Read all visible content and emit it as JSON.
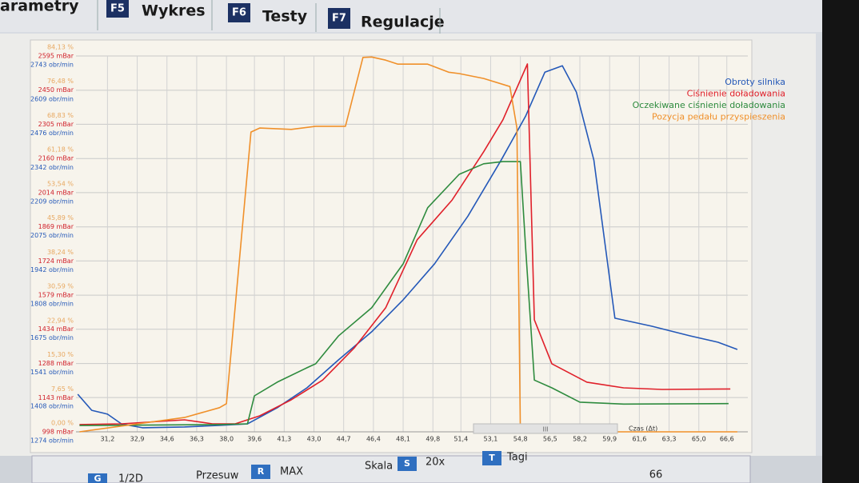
{
  "ui": {
    "partial_tab": "arametry",
    "tabs": [
      {
        "key": "F5",
        "label": "Wykres"
      },
      {
        "key": "F6",
        "label": "Testy"
      },
      {
        "key": "F7",
        "label": "Regulacje"
      }
    ],
    "toolbar": [
      {
        "key": "G",
        "label": "1/2D"
      },
      {
        "text": "Przesuw",
        "key": "R",
        "label": "MAX"
      },
      {
        "text": "Skala",
        "key": "S",
        "label": "20x"
      },
      {
        "key": "T",
        "label": "Tagi"
      }
    ],
    "scroll": "III",
    "page": "66"
  },
  "chart_data": {
    "type": "line",
    "x_label": "Czas (Δt)",
    "xlim": [
      29.4,
      67.8
    ],
    "xticks": [
      {
        "value": 31.2,
        "label": "31,2"
      },
      {
        "value": 32.9,
        "label": "32,9"
      },
      {
        "value": 34.6,
        "label": "34,6"
      },
      {
        "value": 36.3,
        "label": "36,3"
      },
      {
        "value": 38.0,
        "label": "38,0"
      },
      {
        "value": 39.6,
        "label": "39,6"
      },
      {
        "value": 41.3,
        "label": "41,3"
      },
      {
        "value": 43.0,
        "label": "43,0"
      },
      {
        "value": 44.7,
        "label": "44,7"
      },
      {
        "value": 46.4,
        "label": "46,4"
      },
      {
        "value": 48.1,
        "label": "48,1"
      },
      {
        "value": 49.8,
        "label": "49,8"
      },
      {
        "value": 51.4,
        "label": "51,4"
      },
      {
        "value": 53.1,
        "label": "53,1"
      },
      {
        "value": 54.8,
        "label": "54,8"
      },
      {
        "value": 56.5,
        "label": "56,5"
      },
      {
        "value": 58.2,
        "label": "58,2"
      },
      {
        "value": 59.9,
        "label": "59,9"
      },
      {
        "value": 61.6,
        "label": "61,6"
      },
      {
        "value": 63.3,
        "label": "63,3"
      },
      {
        "value": 65.0,
        "label": "65,0"
      },
      {
        "value": 66.6,
        "label": "66,6"
      }
    ],
    "ylim": [
      1274,
      2743
    ],
    "yticks": [
      {
        "value": 2743,
        "label": "2743 obr/min"
      },
      {
        "value": 2609,
        "label": "2609 obr/min"
      },
      {
        "value": 2476,
        "label": "2476 obr/min"
      },
      {
        "value": 2342,
        "label": "2342 obr/min"
      },
      {
        "value": 2209,
        "label": "2209 obr/min"
      },
      {
        "value": 2075,
        "label": "2075 obr/min"
      },
      {
        "value": 1942,
        "label": "1942 obr/min"
      },
      {
        "value": 1808,
        "label": "1808 obr/min"
      },
      {
        "value": 1675,
        "label": "1675 obr/min"
      },
      {
        "value": 1541,
        "label": "1541 obr/min"
      },
      {
        "value": 1408,
        "label": "1408 obr/min"
      },
      {
        "value": 1274,
        "label": "1274 obr/min"
      }
    ],
    "y2lim": [
      998,
      2595
    ],
    "y2ticks": [
      {
        "value": 2595,
        "label": "2595 mBar"
      },
      {
        "value": 2450,
        "label": "2450 mBar"
      },
      {
        "value": 2305,
        "label": "2305 mBar"
      },
      {
        "value": 2160,
        "label": "2160 mBar"
      },
      {
        "value": 2014,
        "label": "2014 mBar"
      },
      {
        "value": 1869,
        "label": "1869 mBar"
      },
      {
        "value": 1724,
        "label": "1724 mBar"
      },
      {
        "value": 1579,
        "label": "1579 mBar"
      },
      {
        "value": 1434,
        "label": "1434 mBar"
      },
      {
        "value": 1288,
        "label": "1288 mBar"
      },
      {
        "value": 1143,
        "label": "1143 mBar"
      },
      {
        "value": 998,
        "label": "998 mBar"
      }
    ],
    "y3lim": [
      0,
      84.13
    ],
    "y3ticks": [
      {
        "value": 84.13,
        "label": "84,13 %"
      },
      {
        "value": 76.48,
        "label": "76,48 %"
      },
      {
        "value": 68.83,
        "label": "68,83 %"
      },
      {
        "value": 61.18,
        "label": "61,18 %"
      },
      {
        "value": 53.54,
        "label": "53,54 %"
      },
      {
        "value": 45.89,
        "label": "45,89 %"
      },
      {
        "value": 38.24,
        "label": "38,24 %"
      },
      {
        "value": 30.59,
        "label": "30,59 %"
      },
      {
        "value": 22.94,
        "label": "22,94 %"
      },
      {
        "value": 15.3,
        "label": "15,30 %"
      },
      {
        "value": 7.65,
        "label": "7,65 %"
      },
      {
        "value": 0,
        "label": "0,00 %"
      }
    ],
    "grid": true,
    "legend": "top-right",
    "series": [
      {
        "name": "Obroty silnika",
        "color": "#2458b8",
        "axis": "y",
        "x": [
          29.5,
          30.3,
          31.2,
          32.0,
          33.2,
          35.6,
          37.6,
          39.2,
          40.9,
          42.6,
          44.4,
          46.3,
          48.1,
          49.9,
          51.8,
          53.7,
          55.1,
          56.2,
          57.2,
          58.0,
          59.0,
          60.2,
          62.3,
          64.5,
          66.1,
          67.2
        ],
        "values": [
          1421,
          1358,
          1343,
          1305,
          1290,
          1293,
          1299,
          1305,
          1368,
          1446,
          1555,
          1665,
          1790,
          1931,
          2117,
          2336,
          2508,
          2680,
          2705,
          2602,
          2336,
          1718,
          1687,
          1649,
          1624,
          1596
        ]
      },
      {
        "name": "Ciśnienie doładowania",
        "color": "#e0202a",
        "axis": "y2",
        "x": [
          29.6,
          32.0,
          35.6,
          37.2,
          38.5,
          39.9,
          41.7,
          43.5,
          45.3,
          47.1,
          48.9,
          50.9,
          52.7,
          53.8,
          55.2,
          55.6,
          56.6,
          58.6,
          60.7,
          62.9,
          66.8
        ],
        "values": [
          1029,
          1032,
          1049,
          1032,
          1032,
          1066,
          1134,
          1218,
          1354,
          1525,
          1814,
          1983,
          2188,
          2324,
          2561,
          1474,
          1287,
          1209,
          1185,
          1178,
          1180
        ]
      },
      {
        "name": "Oczekiwane ciśnienie doładowania",
        "color": "#2e8b3e",
        "axis": "y2",
        "x": [
          29.6,
          37.6,
          39.2,
          39.6,
          40.9,
          42.6,
          43.1,
          44.4,
          46.3,
          48.1,
          49.5,
          51.3,
          52.7,
          53.8,
          54.8,
          55.1,
          55.6,
          56.6,
          58.2,
          60.7,
          66.7
        ],
        "values": [
          1025,
          1029,
          1032,
          1151,
          1209,
          1270,
          1287,
          1405,
          1525,
          1712,
          1950,
          2092,
          2137,
          2146,
          2146,
          1779,
          1218,
          1185,
          1124,
          1116,
          1118
        ]
      },
      {
        "name": "Pozycja pedału przyspieszenia",
        "color": "#f0902a",
        "axis": "y3",
        "x": [
          29.6,
          35.6,
          37.6,
          38.0,
          39.4,
          39.9,
          41.7,
          43.1,
          44.8,
          45.8,
          46.3,
          47.1,
          47.8,
          49.5,
          50.7,
          51.3,
          52.7,
          54.2,
          54.6,
          54.8,
          67.2
        ],
        "values": [
          0,
          3.2,
          5.4,
          6.3,
          67.1,
          68.0,
          67.7,
          68.4,
          68.4,
          83.8,
          83.9,
          83.2,
          82.3,
          82.3,
          80.5,
          80.2,
          79.1,
          77.3,
          68.0,
          0,
          0
        ]
      }
    ]
  }
}
